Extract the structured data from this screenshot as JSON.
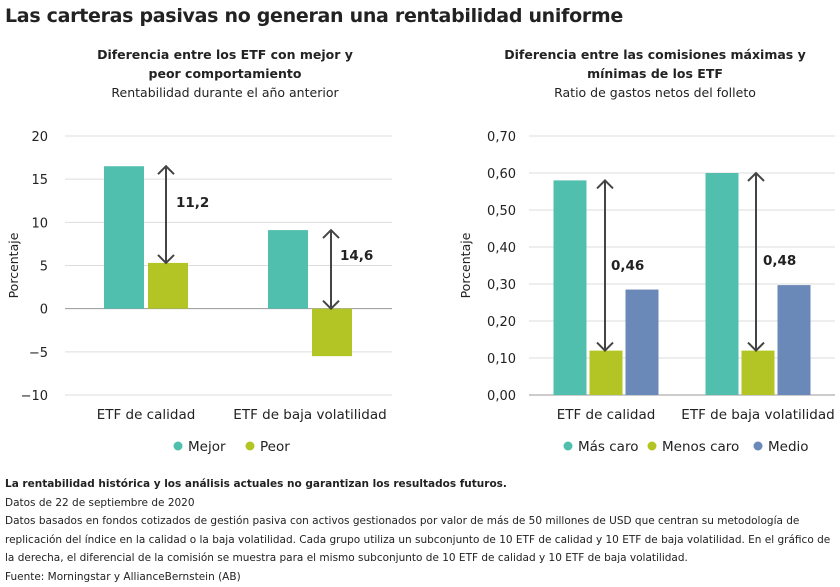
{
  "title": "Las carteras pasivas no generan una rentabilidad uniforme",
  "chart_data": [
    {
      "type": "bar",
      "title": "Diferencia entre los ETF con mejor y peor comportamiento",
      "subtitle": "Rentabilidad durante el año anterior",
      "ylabel": "Porcentaje",
      "ylim": [
        -10,
        20
      ],
      "yticks": [
        "20",
        "15",
        "10",
        "5",
        "0",
        "−5",
        "−10"
      ],
      "ytick_values": [
        20,
        15,
        10,
        5,
        0,
        -5,
        -10
      ],
      "categories": [
        "ETF de calidad",
        "ETF de baja volatilidad"
      ],
      "series": [
        {
          "name": "Mejor",
          "color": "#50bfae",
          "values": [
            16.5,
            9.1
          ]
        },
        {
          "name": "Peor",
          "color": "#b2c524",
          "values": [
            5.3,
            -5.5
          ]
        }
      ],
      "annotations": [
        "11,2",
        "14,6"
      ],
      "grid": true,
      "legend": "bottom"
    },
    {
      "type": "bar",
      "title": "Diferencia entre las comisiones máximas y mínimas de los ETF",
      "subtitle": "Ratio de gastos netos del folleto",
      "ylabel": "Porcentaje",
      "ylim": [
        0,
        0.7
      ],
      "yticks": [
        "0,70",
        "0,60",
        "0,50",
        "0,40",
        "0,30",
        "0,20",
        "0,10",
        "0,00"
      ],
      "ytick_values": [
        0.7,
        0.6,
        0.5,
        0.4,
        0.3,
        0.2,
        0.1,
        0
      ],
      "categories": [
        "ETF de calidad",
        "ETF de baja volatilidad"
      ],
      "series": [
        {
          "name": "Más caro",
          "color": "#50bfae",
          "values": [
            0.58,
            0.6
          ]
        },
        {
          "name": "Menos caro",
          "color": "#b2c524",
          "values": [
            0.12,
            0.12
          ]
        },
        {
          "name": "Medio",
          "color": "#6a88b8",
          "values": [
            0.285,
            0.297
          ]
        }
      ],
      "annotations": [
        "0,46",
        "0,48"
      ],
      "grid": true,
      "legend": "bottom"
    }
  ],
  "left_title_lines": [
    "Diferencia entre los ETF con mejor y",
    "peor comportamiento"
  ],
  "right_title_lines": [
    "Diferencia entre las comisiones máximas y",
    "mínimas de los ETF"
  ],
  "notes": {
    "disclaimer": "La rentabilidad histórica y los análisis actuales no garantizan los resultados futuros.",
    "date": "Datos de 22 de septiembre de 2020",
    "body": "Datos basados en fondos cotizados de gestión pasiva con activos gestionados por valor de más de 50 millones de USD que centran su metodología de replicación del índice en la calidad o la baja volatilidad. Cada grupo utiliza un subconjunto de 10 ETF de calidad y 10 ETF de baja volatilidad. En el gráfico de la derecha, el diferencial de la comisión se muestra para el mismo subconjunto de 10 ETF de calidad y 10 ETF de baja volatilidad.",
    "source": "Fuente: Morningstar y AllianceBernstein (AB)"
  }
}
